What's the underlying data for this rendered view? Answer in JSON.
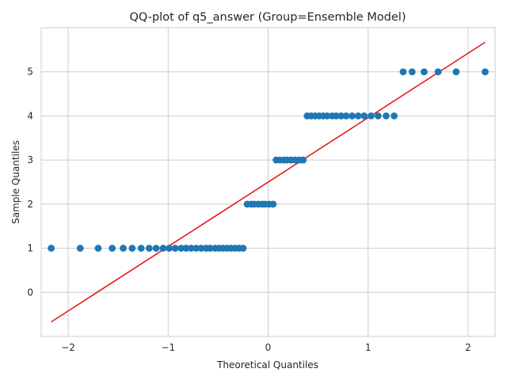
{
  "chart_data": {
    "type": "scatter",
    "title": "QQ-plot of q5_answer (Group=Ensemble Model)",
    "xlabel": "Theoretical Quantiles",
    "ylabel": "Sample Quantiles",
    "xlim": [
      -2.27,
      2.27
    ],
    "ylim": [
      -1.0,
      6.0
    ],
    "xticks": [
      -2,
      -1,
      0,
      1,
      2
    ],
    "xtick_labels": [
      "−2",
      "−1",
      "0",
      "1",
      "2"
    ],
    "yticks": [
      0,
      1,
      2,
      3,
      4,
      5
    ],
    "ytick_labels": [
      "0",
      "1",
      "2",
      "3",
      "4",
      "5"
    ],
    "grid": true,
    "legend": "none",
    "series": [
      {
        "kind": "points",
        "color": "#1f77b4",
        "x": [
          -2.17,
          -1.88,
          -1.7,
          -1.56,
          -1.45,
          -1.36,
          -1.27,
          -1.19,
          -1.12,
          -1.05,
          -0.99,
          -0.93,
          -0.87,
          -0.82,
          -0.77,
          -0.72,
          -0.67,
          -0.62,
          -0.58,
          -0.53,
          -0.49,
          -0.45,
          -0.41,
          -0.37,
          -0.33,
          -0.29,
          -0.25,
          -0.21,
          -0.17,
          -0.14,
          -0.1,
          -0.06,
          -0.03,
          0.01,
          0.05,
          0.08,
          0.12,
          0.16,
          0.19,
          0.23,
          0.27,
          0.31,
          0.35,
          0.39,
          0.43,
          0.47,
          0.51,
          0.55,
          0.59,
          0.64,
          0.68,
          0.73,
          0.78,
          0.84,
          0.9,
          0.96,
          1.03,
          1.1,
          1.18,
          1.26,
          1.35,
          1.44,
          1.56,
          1.7,
          1.88,
          2.17
        ],
        "y": [
          1,
          1,
          1,
          1,
          1,
          1,
          1,
          1,
          1,
          1,
          1,
          1,
          1,
          1,
          1,
          1,
          1,
          1,
          1,
          1,
          1,
          1,
          1,
          1,
          1,
          1,
          1,
          2,
          2,
          2,
          2,
          2,
          2,
          2,
          2,
          3,
          3,
          3,
          3,
          3,
          3,
          3,
          3,
          4,
          4,
          4,
          4,
          4,
          4,
          4,
          4,
          4,
          4,
          4,
          4,
          4,
          4,
          4,
          4,
          4,
          5,
          5,
          5,
          5,
          5,
          5
        ]
      },
      {
        "kind": "line",
        "color": "#e41a1c",
        "x": [
          -2.17,
          2.17
        ],
        "y": [
          -0.67,
          5.67
        ]
      }
    ]
  }
}
